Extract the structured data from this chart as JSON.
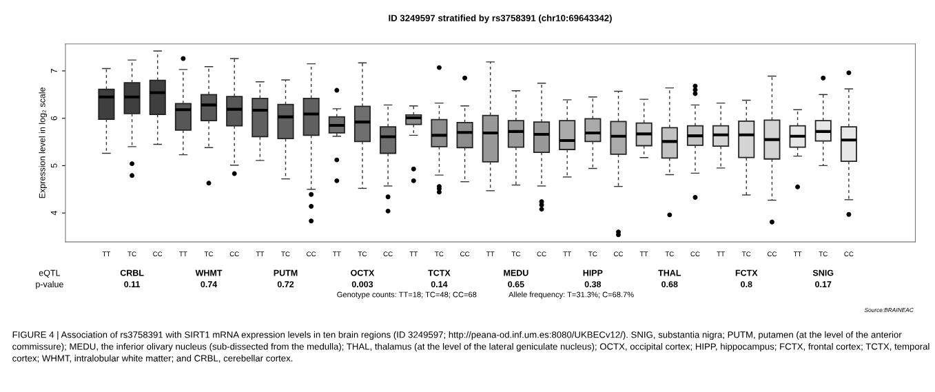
{
  "chart_data": {
    "type": "box",
    "title": "ID 3249597 stratified by rs3758391 (chr10:69643342)",
    "ylabel": "Expression level in log₂ scale",
    "categories": [
      "TT",
      "TC",
      "CC",
      "TT",
      "TC",
      "CC",
      "TT",
      "TC",
      "CC",
      "TT",
      "TC",
      "CC",
      "TT",
      "TC",
      "CC",
      "TT",
      "TC",
      "CC",
      "TT",
      "TC",
      "CC",
      "TT",
      "TC",
      "CC",
      "TT",
      "TC",
      "CC",
      "TT",
      "TC",
      "CC"
    ],
    "colors": [
      "#3f3f3f",
      "#3f3f3f",
      "#3f3f3f",
      "#575757",
      "#575757",
      "#575757",
      "#606060",
      "#606060",
      "#606060",
      "#6e6e6e",
      "#6e6e6e",
      "#6e6e6e",
      "#8c8c8c",
      "#8c8c8c",
      "#8c8c8c",
      "#989898",
      "#989898",
      "#989898",
      "#aaaaaa",
      "#aaaaaa",
      "#aaaaaa",
      "#c2c2c2",
      "#c2c2c2",
      "#c2c2c2",
      "#d4d4d4",
      "#d4d4d4",
      "#d4d4d4",
      "#e6e6e6",
      "#e6e6e6",
      "#e6e6e6"
    ],
    "boxes": [
      {
        "low": 5.26,
        "q1": 5.98,
        "median": 6.45,
        "q3": 6.61,
        "high": 7.05
      },
      {
        "low": 5.4,
        "q1": 6.1,
        "median": 6.45,
        "q3": 6.75,
        "high": 7.23,
        "outliers": [
          5.04,
          4.79
        ]
      },
      {
        "low": 5.45,
        "q1": 6.08,
        "median": 6.54,
        "q3": 6.8,
        "high": 7.42
      },
      {
        "low": 5.23,
        "q1": 5.75,
        "median": 6.18,
        "q3": 6.31,
        "high": 7.03,
        "outliers": [
          7.26
        ]
      },
      {
        "low": 5.38,
        "q1": 5.95,
        "median": 6.28,
        "q3": 6.5,
        "high": 7.09,
        "outliers": [
          4.63
        ]
      },
      {
        "low": 5.01,
        "q1": 5.84,
        "median": 6.19,
        "q3": 6.46,
        "high": 7.26,
        "outliers": [
          4.83
        ]
      },
      {
        "low": 5.11,
        "q1": 5.61,
        "median": 6.17,
        "q3": 6.42,
        "high": 6.77
      },
      {
        "low": 4.72,
        "q1": 5.57,
        "median": 6.03,
        "q3": 6.29,
        "high": 6.81
      },
      {
        "low": 4.5,
        "q1": 5.64,
        "median": 6.09,
        "q3": 6.42,
        "high": 7.15,
        "outliers": [
          4.39,
          4.14,
          3.83
        ]
      },
      {
        "low": 5.62,
        "q1": 5.69,
        "median": 5.85,
        "q3": 6.03,
        "high": 6.2,
        "outliers": [
          6.59,
          5.12,
          4.68
        ]
      },
      {
        "low": 4.52,
        "q1": 5.51,
        "median": 5.92,
        "q3": 6.25,
        "high": 7.17
      },
      {
        "low": 4.57,
        "q1": 5.26,
        "median": 5.61,
        "q3": 5.82,
        "high": 6.28,
        "outliers": [
          4.34,
          4.04
        ]
      },
      {
        "low": 5.64,
        "q1": 5.87,
        "median": 6.01,
        "q3": 6.07,
        "high": 6.26,
        "outliers": [
          4.93,
          4.68
        ]
      },
      {
        "low": 4.8,
        "q1": 5.4,
        "median": 5.64,
        "q3": 5.97,
        "high": 6.32,
        "outliers": [
          7.07,
          4.56,
          4.51,
          4.44
        ]
      },
      {
        "low": 4.66,
        "q1": 5.38,
        "median": 5.7,
        "q3": 5.91,
        "high": 6.26,
        "outliers": [
          6.85
        ]
      },
      {
        "low": 4.47,
        "q1": 5.08,
        "median": 5.69,
        "q3": 6.06,
        "high": 7.19
      },
      {
        "low": 4.59,
        "q1": 5.39,
        "median": 5.72,
        "q3": 5.95,
        "high": 6.58
      },
      {
        "low": 4.57,
        "q1": 5.28,
        "median": 5.66,
        "q3": 5.92,
        "high": 6.74,
        "outliers": [
          4.24,
          4.17,
          4.08
        ]
      },
      {
        "low": 4.76,
        "q1": 5.34,
        "median": 5.53,
        "q3": 5.95,
        "high": 6.39
      },
      {
        "low": 4.94,
        "q1": 5.51,
        "median": 5.69,
        "q3": 5.99,
        "high": 6.45
      },
      {
        "low": 4.56,
        "q1": 5.24,
        "median": 5.62,
        "q3": 5.93,
        "high": 6.57,
        "outliers": [
          3.6,
          3.54
        ]
      },
      {
        "low": 5.17,
        "q1": 5.42,
        "median": 5.67,
        "q3": 5.9,
        "high": 6.4
      },
      {
        "low": 4.81,
        "q1": 5.16,
        "median": 5.51,
        "q3": 5.8,
        "high": 6.64,
        "outliers": [
          3.96
        ]
      },
      {
        "low": 4.84,
        "q1": 5.43,
        "median": 5.63,
        "q3": 5.84,
        "high": 6.28,
        "outliers": [
          6.68,
          6.6,
          6.52,
          4.33
        ]
      },
      {
        "low": 4.95,
        "q1": 5.41,
        "median": 5.65,
        "q3": 5.84,
        "high": 6.32
      },
      {
        "low": 4.38,
        "q1": 5.17,
        "median": 5.65,
        "q3": 5.94,
        "high": 6.38
      },
      {
        "low": 4.27,
        "q1": 5.14,
        "median": 5.55,
        "q3": 5.96,
        "high": 6.89,
        "outliers": [
          3.81
        ]
      },
      {
        "low": 5.2,
        "q1": 5.39,
        "median": 5.62,
        "q3": 5.84,
        "high": 6.18,
        "outliers": [
          4.55
        ]
      },
      {
        "low": 5.0,
        "q1": 5.52,
        "median": 5.72,
        "q3": 5.95,
        "high": 6.5,
        "outliers": [
          6.85
        ]
      },
      {
        "low": 4.28,
        "q1": 5.09,
        "median": 5.54,
        "q3": 5.82,
        "high": 6.62,
        "outliers": [
          6.96,
          3.97
        ]
      }
    ],
    "ylim": [
      3.39,
      7.57
    ],
    "yticks": [
      4,
      5,
      6,
      7
    ],
    "annotations": [
      "eQTL",
      "p-value",
      "CRBL",
      "0.11",
      "WHMT",
      "0.74",
      "PUTM",
      "0.72",
      "OCTX",
      "0.003",
      "TCTX",
      "0.14",
      "MEDU",
      "0.65",
      "HIPP",
      "0.38",
      "THAL",
      "0.68",
      "FCTX",
      "0.8",
      "SNIG",
      "0.17",
      "Genotype counts: TT=18; TC=48; CC=68",
      "Allele frequency: T=31.3%; C=68.7%",
      "Source:BRAINEAC",
      "FIGURE 4 | Association of rs3758391 with SIRT1 mRNA expression levels in ten brain regions (ID 3249597; http://peana-od.inf.um.es:8080/UKBECv12/). SNIG, substantia nigra; PUTM, putamen (at the level of the anterior commissure); MEDU, the inferior olivary nucleus (sub-dissected from the medulla); THAL, thalamus (at the level of the lateral geniculate nucleus); OCTX, occipital cortex; HIPP, hippocampus; FCTX, frontal cortex; TCTX, temporal cortex; WHMT, intralobular white matter; and CRBL, cerebellar cortex."
    ]
  }
}
